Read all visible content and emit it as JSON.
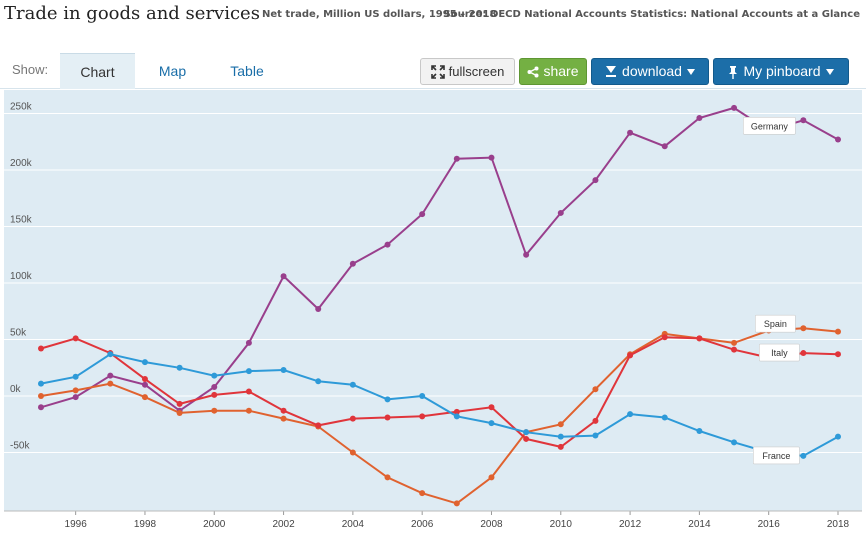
{
  "header": {
    "title": "Trade in goods and services",
    "subtitle": "Net trade, Million US dollars, 1995 – 2018",
    "source": "Source: OECD National Accounts Statistics: National Accounts at a Glance"
  },
  "toolbar": {
    "show_label": "Show:",
    "tabs": [
      {
        "label": "Chart",
        "active": true
      },
      {
        "label": "Map",
        "active": false
      },
      {
        "label": "Table",
        "active": false
      }
    ],
    "fullscreen_label": "fullscreen",
    "share_label": "share",
    "download_label": "download",
    "pinboard_label": "My pinboard"
  },
  "colors": {
    "Germany": "#993f8c",
    "Spain": "#e0622f",
    "Italy": "#e0353b",
    "France": "#2e9ad8",
    "plot_bg": "#deebf3",
    "grid": "#ffffff"
  },
  "chart_data": {
    "type": "line",
    "x": [
      1995,
      1996,
      1997,
      1998,
      1999,
      2000,
      2001,
      2002,
      2003,
      2004,
      2005,
      2006,
      2007,
      2008,
      2009,
      2010,
      2011,
      2012,
      2013,
      2014,
      2015,
      2016,
      2017,
      2018
    ],
    "xticks": [
      1996,
      1998,
      2000,
      2002,
      2004,
      2006,
      2008,
      2010,
      2012,
      2014,
      2016,
      2018
    ],
    "yticks": [
      -50000,
      0,
      50000,
      100000,
      150000,
      200000,
      250000
    ],
    "ytick_labels": [
      "-50k",
      "0k",
      "50k",
      "100k",
      "150k",
      "200k",
      "250k"
    ],
    "ylim": [
      -100000,
      265000
    ],
    "grid": true,
    "series": [
      {
        "name": "Germany",
        "values": [
          -10000,
          -1000,
          18000,
          10000,
          -13000,
          8000,
          47000,
          106000,
          77000,
          117000,
          134000,
          161000,
          210000,
          211000,
          125000,
          162000,
          191000,
          233000,
          221000,
          246000,
          255000,
          235000,
          244000,
          227000
        ]
      },
      {
        "name": "Spain",
        "values": [
          0,
          5000,
          11000,
          -1000,
          -15000,
          -13000,
          -13000,
          -20000,
          -27000,
          -50000,
          -72000,
          -86000,
          -95000,
          -72000,
          -32000,
          -25000,
          6000,
          37000,
          55000,
          51000,
          47000,
          58000,
          60000,
          57000
        ]
      },
      {
        "name": "Italy",
        "values": [
          42000,
          51000,
          38000,
          15000,
          -7000,
          1000,
          4000,
          -13000,
          -26000,
          -20000,
          -19000,
          -18000,
          -14000,
          -10000,
          -38000,
          -45000,
          -22000,
          36000,
          52000,
          51000,
          41000,
          34000,
          38000,
          37000
        ]
      },
      {
        "name": "France",
        "values": [
          11000,
          17000,
          37000,
          30000,
          25000,
          18000,
          22000,
          23000,
          13000,
          10000,
          -3000,
          0,
          -18000,
          -24000,
          -32000,
          -36000,
          -35000,
          -16000,
          -19000,
          -31000,
          -41000,
          -50000,
          -53000,
          -36000
        ]
      }
    ]
  }
}
